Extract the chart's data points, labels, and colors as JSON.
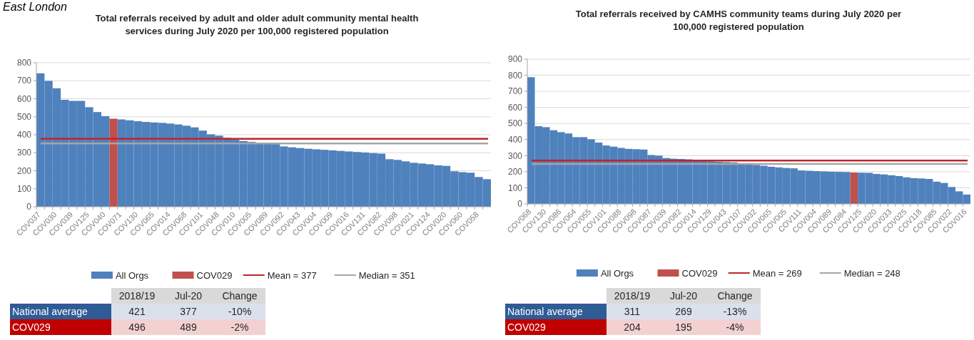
{
  "chart_data": [
    {
      "type": "bar",
      "title": "Total referrals received by adult and older adult community mental health services during July 2020 per 100,000 registered population",
      "annotations": [
        "East London"
      ],
      "categories": [
        "COV037",
        null,
        "COV030",
        null,
        "COV039",
        null,
        "COV125",
        null,
        "COV040",
        null,
        "COV071",
        null,
        "COV130",
        null,
        "COV065",
        null,
        "COV014",
        null,
        "COV068",
        null,
        "COV101",
        null,
        "COV048",
        null,
        "COV010",
        null,
        "COV005",
        null,
        "COV089",
        null,
        "COV092",
        null,
        "COV043",
        null,
        "COV004",
        null,
        "COV009",
        null,
        "COV016",
        null,
        "COV131",
        null,
        "COV082",
        null,
        "COV098",
        null,
        "COV021",
        null,
        "COV124",
        null,
        "COV020",
        null,
        "COV060",
        null,
        "COV058",
        null
      ],
      "series": [
        {
          "name": "All Orgs",
          "color": "#4f81bd",
          "values": [
            741,
            699,
            658,
            594,
            588,
            588,
            553,
            526,
            503,
            null,
            485,
            480,
            475,
            471,
            468,
            466,
            462,
            457,
            450,
            441,
            423,
            402,
            395,
            383,
            372,
            365,
            360,
            356,
            352,
            348,
            335,
            330,
            326,
            322,
            319,
            316,
            313,
            310,
            307,
            304,
            301,
            298,
            295,
            264,
            260,
            252,
            244,
            240,
            236,
            230,
            227,
            197,
            192,
            189,
            165,
            153
          ]
        },
        {
          "name": "COV029",
          "color": "#c0504d",
          "values": [
            null,
            null,
            null,
            null,
            null,
            null,
            null,
            null,
            null,
            489,
            null,
            null,
            null,
            null,
            null,
            null,
            null,
            null,
            null,
            null,
            null,
            null,
            null,
            null,
            null,
            null,
            null,
            null,
            null,
            null,
            null,
            null,
            null,
            null,
            null,
            null,
            null,
            null,
            null,
            null,
            null,
            null,
            null,
            null,
            null,
            null,
            null,
            null,
            null,
            null,
            null,
            null,
            null,
            null,
            null,
            null
          ]
        }
      ],
      "ylim": [
        0,
        800
      ],
      "yticks": [
        0,
        100,
        200,
        300,
        400,
        500,
        600,
        700,
        800
      ],
      "grid": "y",
      "legend": "bottom",
      "ref_lines": [
        {
          "axis": "y",
          "value": 377,
          "label": "Mean = 377",
          "color": "#c0242b"
        },
        {
          "axis": "y",
          "value": 351,
          "label": "Median = 351",
          "color": "#a6a6a6"
        }
      ]
    },
    {
      "type": "other",
      "categories": [
        "2018/19",
        "Jul-20",
        "Change"
      ],
      "y_categories": [
        "National average",
        "COV029"
      ],
      "cell_labels": [
        [
          "421",
          "377",
          "-10%"
        ],
        [
          "496",
          "489",
          "-2%"
        ]
      ]
    },
    {
      "type": "bar",
      "title": "Total referrals received by CAMHS community teams during July 2020 per 100,000 registered population",
      "categories": [
        "COV068",
        null,
        "COV130",
        null,
        "COV086",
        null,
        "COV064",
        null,
        "COV055",
        null,
        "COV101",
        null,
        "COV088",
        null,
        "COV098",
        null,
        "COV087",
        null,
        "COV039",
        null,
        "COV082",
        null,
        "COV014",
        null,
        "COV129",
        null,
        "COV043",
        null,
        "COV107",
        null,
        "COV032",
        null,
        "COV065",
        null,
        "COV005",
        null,
        "COV111",
        null,
        "COV004",
        null,
        "COV089",
        null,
        "COV084",
        null,
        "COV125",
        null,
        "COV020",
        null,
        "COV033",
        null,
        "COV025",
        null,
        "COV118",
        null,
        "COV085",
        null,
        "COV022",
        null,
        "COV016"
      ],
      "series": [
        {
          "name": "All Orgs",
          "color": "#4f81bd",
          "values": [
            788,
            483,
            477,
            458,
            446,
            438,
            415,
            415,
            402,
            381,
            363,
            356,
            348,
            342,
            340,
            338,
            304,
            300,
            285,
            281,
            279,
            277,
            273,
            269,
            265,
            262,
            260,
            258,
            250,
            248,
            242,
            237,
            231,
            227,
            223,
            221,
            208,
            206,
            204,
            202,
            200,
            199,
            198,
            null,
            194,
            193,
            186,
            183,
            178,
            173,
            165,
            160,
            158,
            155,
            138,
            130,
            105,
            78,
            58
          ]
        },
        {
          "name": "COV029",
          "color": "#c0504d",
          "values": [
            null,
            null,
            null,
            null,
            null,
            null,
            null,
            null,
            null,
            null,
            null,
            null,
            null,
            null,
            null,
            null,
            null,
            null,
            null,
            null,
            null,
            null,
            null,
            null,
            null,
            null,
            null,
            null,
            null,
            null,
            null,
            null,
            null,
            null,
            null,
            null,
            null,
            null,
            null,
            null,
            null,
            null,
            null,
            195,
            null,
            null,
            null,
            null,
            null,
            null,
            null,
            null,
            null,
            null,
            null,
            null,
            null,
            null,
            null
          ]
        }
      ],
      "ylim": [
        0,
        900
      ],
      "yticks": [
        0,
        100,
        200,
        300,
        400,
        500,
        600,
        700,
        800,
        900
      ],
      "grid": "y",
      "legend": "bottom",
      "ref_lines": [
        {
          "axis": "y",
          "value": 269,
          "label": "Mean = 269",
          "color": "#c0242b"
        },
        {
          "axis": "y",
          "value": 248,
          "label": "Median = 248",
          "color": "#a6a6a6"
        }
      ]
    },
    {
      "type": "other",
      "categories": [
        "2018/19",
        "Jul-20",
        "Change"
      ],
      "y_categories": [
        "National average",
        "COV029"
      ],
      "cell_labels": [
        [
          "311",
          "269",
          "-13%"
        ],
        [
          "204",
          "195",
          "-4%"
        ]
      ]
    }
  ]
}
